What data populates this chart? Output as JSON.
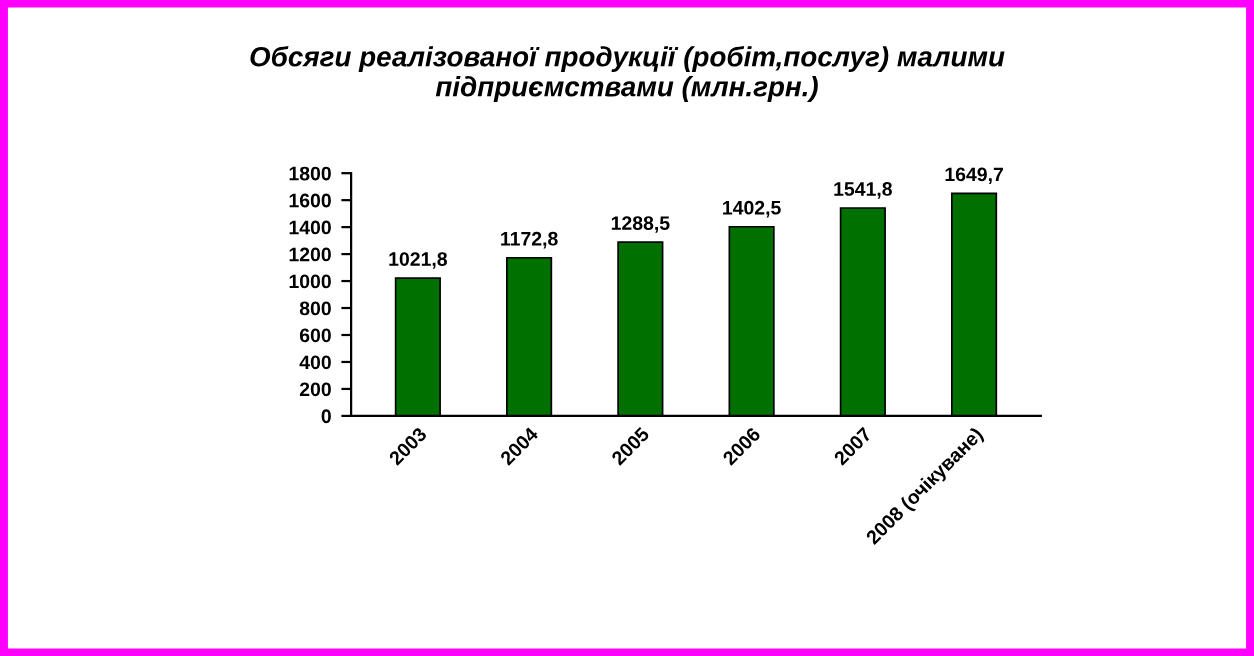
{
  "chart_data": {
    "type": "bar",
    "title": "Обсяги реалізованої продукції (робіт,послуг) малими\nпідприємствами (млн.грн.)",
    "categories": [
      "2003",
      "2004",
      "2005",
      "2006",
      "2007",
      "2008 (очікуване)"
    ],
    "values": [
      1021.8,
      1172.8,
      1288.5,
      1402.5,
      1541.8,
      1649.7
    ],
    "value_labels": [
      "1021,8",
      "1172,8",
      "1288,5",
      "1402,5",
      "1541,8",
      "1649,7"
    ],
    "color": "#007000",
    "ylim": [
      0,
      1800
    ],
    "yticks": [
      0,
      200,
      400,
      600,
      800,
      1000,
      1200,
      1400,
      1600,
      1800
    ],
    "grid": false
  }
}
